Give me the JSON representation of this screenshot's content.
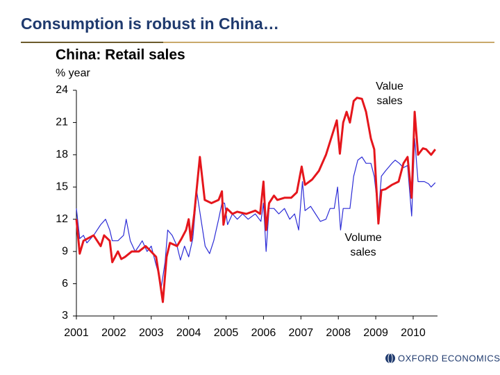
{
  "slide_title": "Consumption is robust in China…",
  "logo": "OXFORD ECONOMICS",
  "chart_data": {
    "type": "line",
    "title": "China: Retail sales",
    "y_label": "% year",
    "xlim": [
      2001,
      2010.65
    ],
    "xticks": [
      2001,
      2002,
      2003,
      2004,
      2005,
      2006,
      2007,
      2008,
      2009,
      2010
    ],
    "ylim": [
      3,
      24
    ],
    "yticks": [
      3,
      6,
      9,
      12,
      15,
      18,
      21,
      24
    ],
    "grid": false,
    "annotations": [
      {
        "lines": [
          "Value",
          "sales"
        ]
      },
      {
        "lines": [
          "Volume",
          "sales"
        ]
      }
    ],
    "series": [
      {
        "color": "#2b2bd6",
        "x": [
          2001.0,
          2001.09,
          2001.19,
          2001.28,
          2001.46,
          2001.65,
          2001.78,
          2001.89,
          2001.96,
          2002.11,
          2002.26,
          2002.33,
          2002.44,
          2002.57,
          2002.67,
          2002.76,
          2002.89,
          2003.0,
          2003.11,
          2003.19,
          2003.26,
          2003.37,
          2003.44,
          2003.56,
          2003.69,
          2003.78,
          2003.89,
          2004.0,
          2004.11,
          2004.22,
          2004.33,
          2004.44,
          2004.56,
          2004.67,
          2004.8,
          2004.89,
          2004.96,
          2005.04,
          2005.17,
          2005.3,
          2005.44,
          2005.59,
          2005.78,
          2005.93,
          2006.0,
          2006.07,
          2006.15,
          2006.28,
          2006.41,
          2006.56,
          2006.7,
          2006.83,
          2006.94,
          2007.04,
          2007.11,
          2007.26,
          2007.39,
          2007.52,
          2007.67,
          2007.78,
          2007.89,
          2007.98,
          2008.06,
          2008.13,
          2008.22,
          2008.31,
          2008.41,
          2008.52,
          2008.63,
          2008.74,
          2008.87,
          2008.96,
          2009.07,
          2009.15,
          2009.26,
          2009.43,
          2009.52,
          2009.63,
          2009.74,
          2009.85,
          2009.96,
          2010.04,
          2010.13,
          2010.3,
          2010.41,
          2010.48,
          2010.59
        ],
        "values": [
          13,
          10.2,
          10.5,
          9.8,
          10.5,
          11.5,
          12,
          11,
          10,
          10,
          10.5,
          12,
          10,
          9,
          9.5,
          10,
          9,
          9.5,
          8,
          7,
          5.5,
          8,
          11,
          10.5,
          9.5,
          8.2,
          9.5,
          8.5,
          10.2,
          14.5,
          12,
          9.5,
          8.8,
          10,
          12,
          13.5,
          13.5,
          11.5,
          12.5,
          12,
          12.5,
          12,
          12.5,
          11.8,
          13.5,
          9,
          13,
          13,
          12.5,
          13,
          12,
          12.5,
          11,
          15.5,
          12.8,
          13.2,
          12.5,
          11.8,
          12,
          13,
          13,
          15,
          11,
          13,
          13,
          13,
          16,
          17.5,
          17.8,
          17.2,
          17.2,
          16,
          12.5,
          16,
          16.5,
          17.2,
          17.5,
          17.2,
          16.8,
          17,
          12.3,
          19.5,
          15.5,
          15.5,
          15.3,
          15,
          15.4
        ]
      },
      {
        "color": "#e5161c",
        "x": [
          2001.0,
          2001.09,
          2001.19,
          2001.46,
          2001.65,
          2001.74,
          2001.89,
          2001.96,
          2002.11,
          2002.2,
          2002.3,
          2002.48,
          2002.67,
          2002.85,
          2002.94,
          2003.13,
          2003.22,
          2003.31,
          2003.41,
          2003.5,
          2003.69,
          2003.81,
          2003.93,
          2004.0,
          2004.06,
          2004.15,
          2004.3,
          2004.43,
          2004.61,
          2004.8,
          2004.89,
          2004.93,
          2005.02,
          2005.17,
          2005.3,
          2005.54,
          2005.78,
          2005.91,
          2006.0,
          2006.07,
          2006.15,
          2006.28,
          2006.37,
          2006.56,
          2006.74,
          2006.89,
          2007.02,
          2007.11,
          2007.3,
          2007.48,
          2007.67,
          2007.85,
          2007.96,
          2008.04,
          2008.13,
          2008.22,
          2008.31,
          2008.41,
          2008.5,
          2008.63,
          2008.74,
          2008.87,
          2008.96,
          2009.07,
          2009.15,
          2009.26,
          2009.43,
          2009.61,
          2009.74,
          2009.85,
          2009.96,
          2010.04,
          2010.13,
          2010.26,
          2010.35,
          2010.48,
          2010.59
        ],
        "values": [
          12,
          8.8,
          10,
          10.5,
          9.5,
          10.5,
          10,
          8,
          9,
          8.3,
          8.5,
          9,
          9,
          9.5,
          9.2,
          8.5,
          6.5,
          4.3,
          8.5,
          9.8,
          9.5,
          10.2,
          11,
          12,
          10,
          12.5,
          17.8,
          13.8,
          13.5,
          13.8,
          14.6,
          11.5,
          13,
          12.5,
          12.7,
          12.5,
          12.8,
          12.5,
          15.5,
          11,
          13.5,
          14.2,
          13.8,
          14,
          14,
          14.5,
          16.9,
          15.2,
          15.7,
          16.5,
          18,
          20,
          21.2,
          18.1,
          21,
          22,
          21,
          23,
          23.3,
          23.2,
          22,
          19.5,
          18.5,
          11.6,
          14.7,
          14.8,
          15.2,
          15.5,
          17.2,
          17.8,
          14,
          22,
          18,
          18.6,
          18.5,
          18,
          18.5
        ]
      }
    ]
  }
}
